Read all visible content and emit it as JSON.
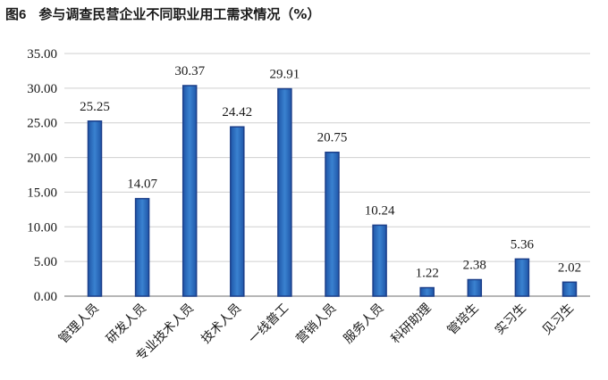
{
  "figure": {
    "number": "图6",
    "title": "参与调查民营企业不同职业用工需求情况（%）"
  },
  "colors": {
    "bar_fill": "#2e6fbe",
    "bar_stroke": "#1c3f8a",
    "grid": "#cfcfcf",
    "axis": "#8a8a8a"
  },
  "chart_data": {
    "type": "bar",
    "title": "参与调查民营企业不同职业用工需求情况（%）",
    "xlabel": "",
    "ylabel": "",
    "categories": [
      "管理人员",
      "研发人员",
      "专业技术人员",
      "技术人员",
      "一线普工",
      "营销人员",
      "服务人员",
      "科研助理",
      "管培生",
      "实习生",
      "见习生"
    ],
    "values": [
      25.25,
      14.07,
      30.37,
      24.42,
      29.91,
      20.75,
      10.24,
      1.22,
      2.38,
      5.36,
      2.02
    ],
    "value_labels": [
      "25.25",
      "14.07",
      "30.37",
      "24.42",
      "29.91",
      "20.75",
      "10.24",
      "1.22",
      "2.38",
      "5.36",
      "2.02"
    ],
    "ylim": [
      0,
      35
    ],
    "yticks": [
      0,
      5,
      10,
      15,
      20,
      25,
      30,
      35
    ],
    "ytick_labels": [
      "0.00",
      "5.00",
      "10.00",
      "15.00",
      "20.00",
      "25.00",
      "30.00",
      "35.00"
    ],
    "grid": true,
    "legend": "none"
  }
}
